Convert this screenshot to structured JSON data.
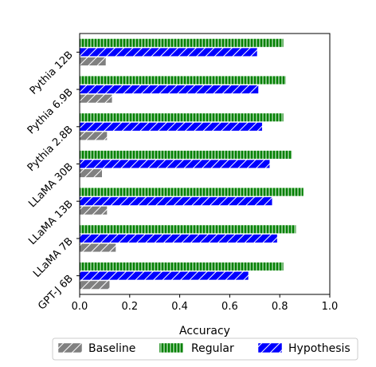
{
  "chart_data": {
    "type": "bar",
    "orientation": "horizontal",
    "categories": [
      "GPT-J 6B",
      "LLaMA 7B",
      "LLaMA 13B",
      "LLaMA 30B",
      "Pythia 2.8B",
      "Pythia 6.9B",
      "Pythia 12B"
    ],
    "series": [
      {
        "name": "Baseline",
        "color": "#808080",
        "hatch": "diagonal",
        "values": [
          0.12,
          0.145,
          0.11,
          0.09,
          0.11,
          0.13,
          0.105
        ]
      },
      {
        "name": "Regular",
        "color": "#008000",
        "hatch": "vertical",
        "values": [
          0.815,
          0.865,
          0.895,
          0.85,
          0.815,
          0.825,
          0.815
        ]
      },
      {
        "name": "Hypothesis",
        "color": "#0000ff",
        "hatch": "diagonal",
        "values": [
          0.675,
          0.79,
          0.77,
          0.76,
          0.73,
          0.715,
          0.71
        ]
      }
    ],
    "xlabel": "Accuracy",
    "xlim": [
      0.0,
      1.0
    ],
    "xticks": [
      "0.0",
      "0.2",
      "0.4",
      "0.6",
      "0.8",
      "1.0"
    ],
    "grid": false,
    "legend_position": "bottom"
  }
}
